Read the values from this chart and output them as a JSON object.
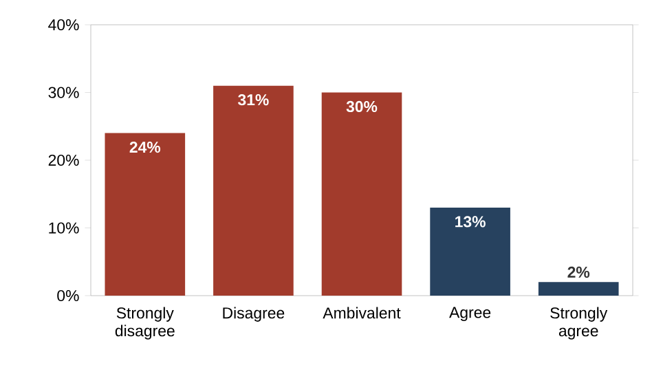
{
  "chart_data": {
    "type": "bar",
    "categories": [
      "Strongly disagree",
      "Disagree",
      "Ambivalent",
      "Agree",
      "Strongly agree"
    ],
    "values": [
      24,
      31,
      30,
      13,
      2
    ],
    "colors": [
      "#a23b2c",
      "#a23b2c",
      "#a23b2c",
      "#27425f",
      "#27425f"
    ],
    "value_labels": [
      "24%",
      "31%",
      "30%",
      "13%",
      "2%"
    ],
    "ylim": [
      0,
      40
    ],
    "yticks": [
      {
        "value": 0,
        "label": "0%"
      },
      {
        "value": 10,
        "label": "10%"
      },
      {
        "value": 20,
        "label": "20%"
      },
      {
        "value": 30,
        "label": "30%"
      },
      {
        "value": 40,
        "label": "40%"
      }
    ],
    "grid": false
  }
}
